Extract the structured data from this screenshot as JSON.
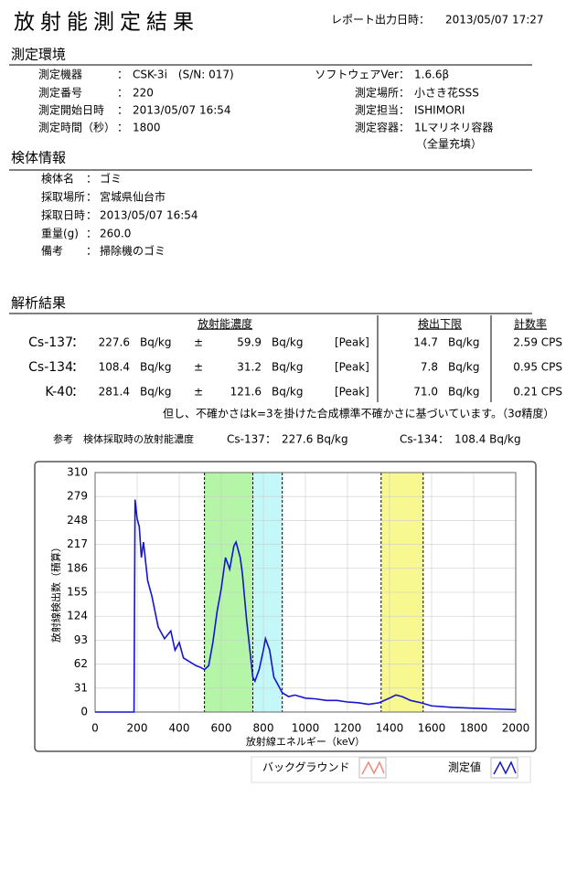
{
  "header": {
    "title": "放射能測定結果",
    "report_label": "レポート出力日時：",
    "report_datetime": "2013/05/07 17:27"
  },
  "environment": {
    "heading": "測定環境",
    "sep": "：",
    "left": [
      {
        "label": "測定機器",
        "value": "CSK-3i　(S/N: 017)"
      },
      {
        "label": "測定番号",
        "value": "220"
      },
      {
        "label": "測定開始日時",
        "value": "2013/05/07 16:54"
      },
      {
        "label": "測定時間（秒）",
        "value": "1800"
      }
    ],
    "right": [
      {
        "label": "ソフトウェアVer",
        "value": "1.6.6β"
      },
      {
        "label": "測定場所",
        "value": "小さき花SSS"
      },
      {
        "label": "測定担当",
        "value": "ISHIMORI"
      },
      {
        "label": "測定容器",
        "value": "1Lマリネリ容器",
        "note": "（全量充填）"
      }
    ]
  },
  "sample": {
    "heading": "検体情報",
    "sep": "：",
    "rows": [
      {
        "label": "検体名",
        "value": "ゴミ"
      },
      {
        "label": "採取場所",
        "value": "宮城県仙台市"
      },
      {
        "label": "採取日時",
        "value": "2013/05/07 16:54"
      },
      {
        "label": "重量(g)",
        "value": "260.0"
      },
      {
        "label": "備考",
        "value": "掃除機のゴミ"
      }
    ]
  },
  "analysis": {
    "heading": "解析結果",
    "sep": "：",
    "unit": "Bq/kg",
    "pm": "±",
    "method": "[Peak]",
    "columns": {
      "activity": "放射能濃度",
      "detection_limit": "検出下限",
      "count_rate": "計数率"
    },
    "rows": [
      {
        "nuclide": "Cs-137",
        "activity": "227.6",
        "uncertainty": "59.9",
        "detection_limit": "14.7",
        "count_rate": "2.59 CPS"
      },
      {
        "nuclide": "Cs-134",
        "activity": "108.4",
        "uncertainty": "31.2",
        "detection_limit": "7.8",
        "count_rate": "0.95 CPS"
      },
      {
        "nuclide": "K-40",
        "activity": "281.4",
        "uncertainty": "121.6",
        "detection_limit": "71.0",
        "count_rate": "0.21 CPS"
      }
    ],
    "note": "但し、不確かさはk=3を掛けた合成標準不確かさに基づいています。（3σ精度）",
    "reference": {
      "label": "参考　検体採取時の放射能濃度",
      "items": [
        {
          "nuclide": "Cs-137",
          "value": "227.6 Bq/kg"
        },
        {
          "nuclide": "Cs-134",
          "value": "108.4 Bq/kg"
        }
      ]
    }
  },
  "chart": {
    "type": "line",
    "xlabel": "放射線エネルギー（keV）",
    "ylabel": "放射線検出数（積算）",
    "xlim": [
      0,
      2000
    ],
    "ylim": [
      0,
      310
    ],
    "xticks": [
      0,
      200,
      400,
      600,
      800,
      1000,
      1200,
      1400,
      1600,
      1800,
      2000
    ],
    "yticks": [
      0,
      31,
      62,
      93,
      124,
      155,
      186,
      217,
      248,
      279,
      310
    ],
    "grid": true,
    "regions": [
      {
        "xlim": [
          520,
          750
        ],
        "color": "#b4f5a8"
      },
      {
        "xlim": [
          750,
          890
        ],
        "color": "#c4f8f8"
      },
      {
        "xlim": [
          1360,
          1560
        ],
        "color": "#f8f890"
      }
    ],
    "series": [
      {
        "name": "測定値",
        "color": "#1414d2",
        "x": [
          0,
          185,
          190,
          200,
          210,
          220,
          230,
          250,
          270,
          300,
          330,
          360,
          380,
          400,
          420,
          450,
          480,
          500,
          520,
          540,
          560,
          580,
          600,
          620,
          640,
          660,
          670,
          690,
          700,
          720,
          740,
          750,
          760,
          780,
          800,
          810,
          830,
          850,
          870,
          890,
          920,
          950,
          1000,
          1050,
          1100,
          1150,
          1200,
          1250,
          1300,
          1350,
          1400,
          1430,
          1460,
          1500,
          1550,
          1600,
          1700,
          1800,
          1900,
          2000
        ],
        "values": [
          0,
          0,
          275,
          250,
          240,
          200,
          220,
          170,
          150,
          110,
          95,
          105,
          80,
          90,
          70,
          65,
          60,
          58,
          55,
          60,
          90,
          130,
          160,
          200,
          185,
          215,
          220,
          200,
          180,
          120,
          70,
          45,
          40,
          55,
          80,
          95,
          80,
          45,
          35,
          25,
          20,
          22,
          18,
          17,
          15,
          15,
          13,
          12,
          10,
          12,
          18,
          22,
          20,
          15,
          12,
          8,
          6,
          5,
          4,
          3
        ]
      }
    ],
    "legend": [
      {
        "name": "バックグラウンド",
        "color": "#f08878"
      },
      {
        "name": "測定値",
        "color": "#1414d2"
      }
    ]
  }
}
